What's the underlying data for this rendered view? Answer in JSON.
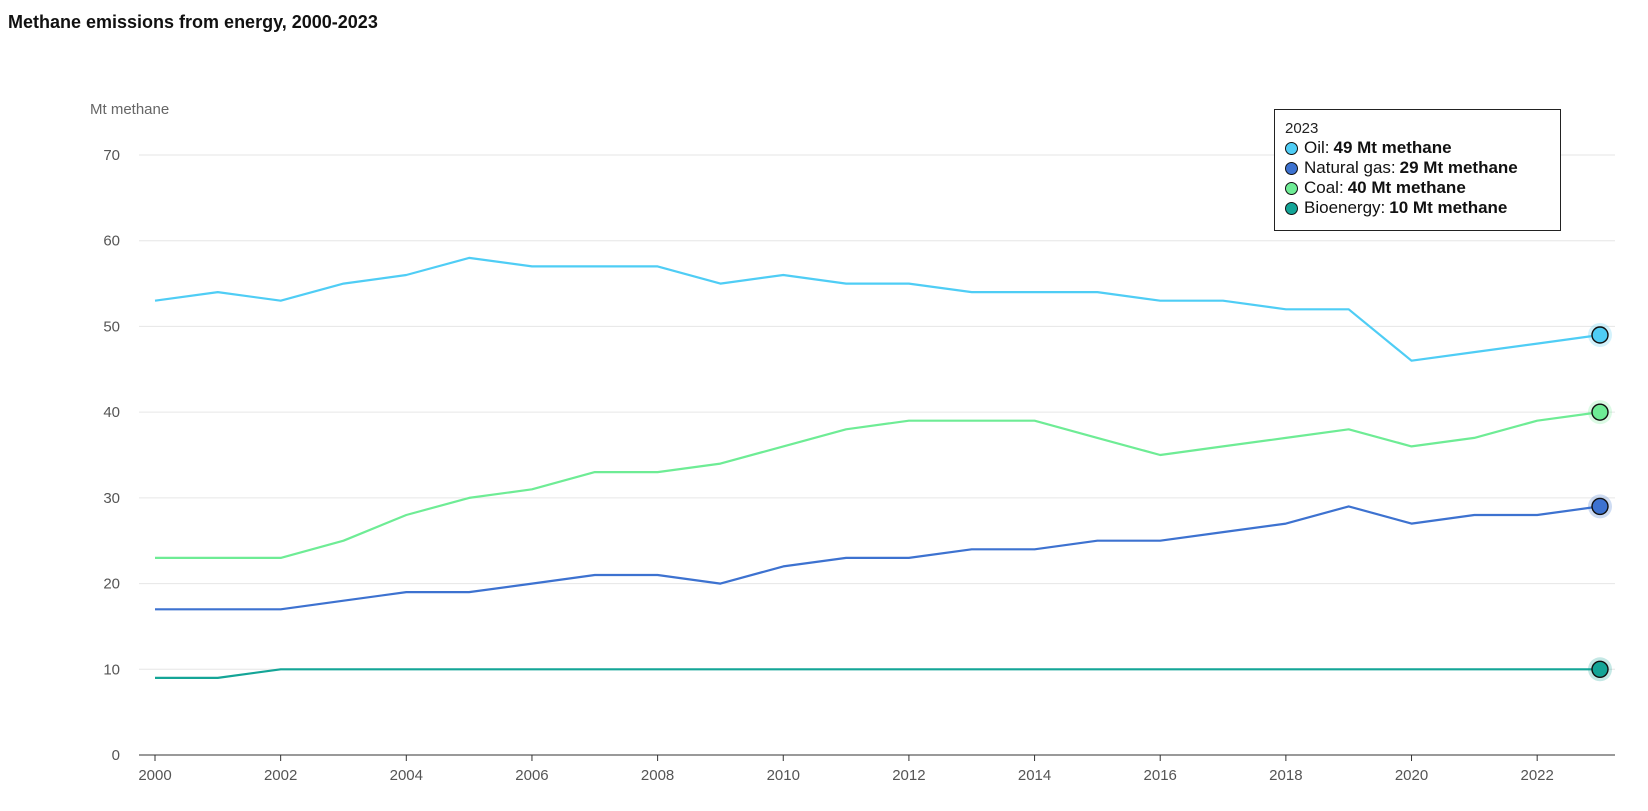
{
  "title": "Methane emissions from energy, 2000-2023",
  "chart_data": {
    "type": "line",
    "title": "Methane emissions from energy, 2000-2023",
    "xlabel": "",
    "ylabel": "Mt methane",
    "ylim": [
      0,
      70
    ],
    "yticks": [
      0,
      10,
      20,
      30,
      40,
      50,
      60,
      70
    ],
    "xlim": [
      2000,
      2023
    ],
    "xticks": [
      2000,
      2002,
      2004,
      2006,
      2008,
      2010,
      2012,
      2014,
      2016,
      2018,
      2020,
      2022
    ],
    "grid": true,
    "x": [
      2000,
      2001,
      2002,
      2003,
      2004,
      2005,
      2006,
      2007,
      2008,
      2009,
      2010,
      2011,
      2012,
      2013,
      2014,
      2015,
      2016,
      2017,
      2018,
      2019,
      2020,
      2021,
      2022,
      2023
    ],
    "series": [
      {
        "name": "Oil",
        "color": "#4fcdf5",
        "values": [
          53,
          54,
          53,
          55,
          56,
          58,
          57,
          57,
          57,
          55,
          56,
          55,
          55,
          54,
          54,
          54,
          53,
          53,
          52,
          52,
          46,
          47,
          48,
          49
        ]
      },
      {
        "name": "Natural gas",
        "color": "#3d72d0",
        "values": [
          17,
          17,
          17,
          18,
          19,
          19,
          20,
          21,
          21,
          20,
          22,
          23,
          23,
          24,
          24,
          25,
          25,
          26,
          27,
          29,
          27,
          28,
          28,
          29
        ]
      },
      {
        "name": "Coal",
        "color": "#6eec95",
        "values": [
          23,
          23,
          23,
          25,
          28,
          30,
          31,
          33,
          33,
          34,
          36,
          38,
          39,
          39,
          39,
          37,
          35,
          36,
          37,
          38,
          36,
          37,
          39,
          40
        ]
      },
      {
        "name": "Bioenergy",
        "color": "#14a597",
        "values": [
          9,
          9,
          10,
          10,
          10,
          10,
          10,
          10,
          10,
          10,
          10,
          10,
          10,
          10,
          10,
          10,
          10,
          10,
          10,
          10,
          10,
          10,
          10,
          10
        ]
      }
    ]
  },
  "tooltip": {
    "year": "2023",
    "rows": [
      {
        "label": "Oil:",
        "value": "49 Mt methane",
        "color": "#4fcdf5"
      },
      {
        "label": "Natural gas:",
        "value": "29 Mt methane",
        "color": "#3d72d0"
      },
      {
        "label": "Coal:",
        "value": "40 Mt methane",
        "color": "#6eec95"
      },
      {
        "label": "Bioenergy:",
        "value": "10 Mt methane",
        "color": "#14a597"
      }
    ]
  }
}
